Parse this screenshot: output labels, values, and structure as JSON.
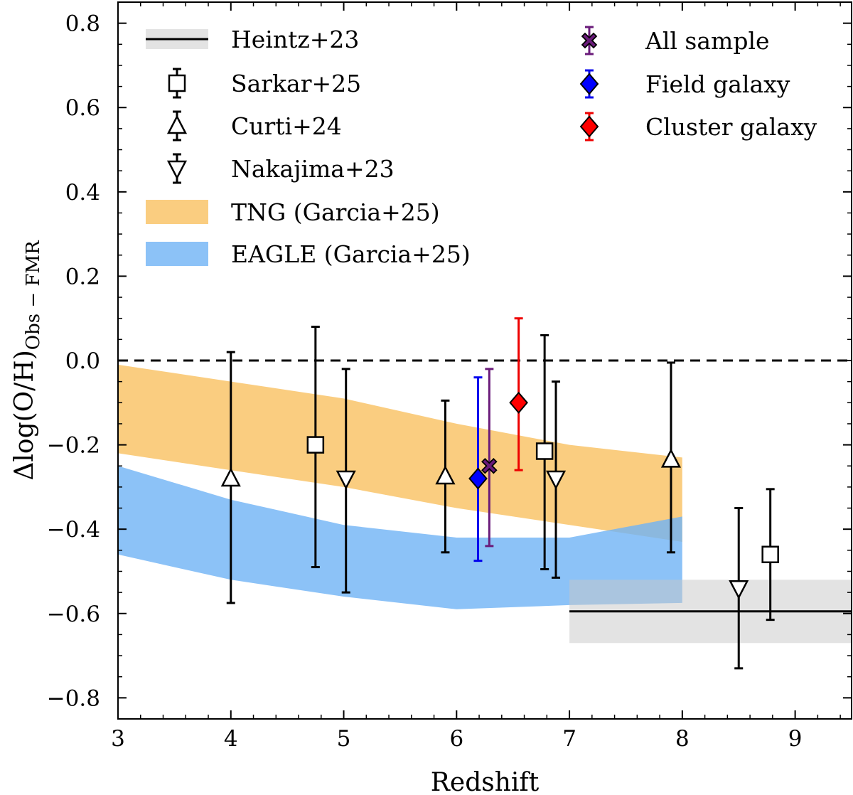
{
  "chart_data": {
    "type": "scatter",
    "xlabel": "Redshift",
    "ylabel_main": "Δlog(O/H)",
    "ylabel_sub": "Obs − FMR",
    "xlim": [
      3,
      9.5
    ],
    "ylim": [
      -0.85,
      0.85
    ],
    "xticks": [
      3,
      4,
      5,
      6,
      7,
      8,
      9
    ],
    "yticks": [
      -0.8,
      -0.6,
      -0.4,
      -0.2,
      0.0,
      0.2,
      0.4,
      0.6,
      0.8
    ],
    "ytick_labels": [
      "−0.8",
      "−0.6",
      "−0.4",
      "−0.2",
      "0.0",
      "0.2",
      "0.4",
      "0.6",
      "0.8"
    ],
    "reference_line": {
      "y": 0.0,
      "style": "dashed"
    },
    "bands": [
      {
        "name": "TNG (Garcia+25)",
        "color": "#f9c46a",
        "opacity": 0.85,
        "x": [
          3,
          4,
          5,
          6,
          7,
          8
        ],
        "upper": [
          -0.01,
          -0.05,
          -0.09,
          -0.15,
          -0.2,
          -0.23
        ],
        "lower": [
          -0.22,
          -0.26,
          -0.3,
          -0.35,
          -0.39,
          -0.43
        ]
      },
      {
        "name": "EAGLE (Garcia+25)",
        "color": "#6fb3f5",
        "opacity": 0.8,
        "x": [
          3,
          4,
          5,
          6,
          7,
          8
        ],
        "upper": [
          -0.25,
          -0.33,
          -0.39,
          -0.42,
          -0.42,
          -0.37
        ],
        "lower": [
          -0.46,
          -0.52,
          -0.56,
          -0.59,
          -0.58,
          -0.575
        ]
      }
    ],
    "heintz": {
      "name": "Heintz+23",
      "x": [
        7.0,
        9.5
      ],
      "y": -0.595,
      "lower": -0.67,
      "upper": -0.52
    },
    "series": [
      {
        "name": "Sarkar+25",
        "marker": "square",
        "color": "#000000",
        "fill": "#ffffff",
        "points": [
          {
            "x": 4.75,
            "y": -0.2,
            "lo": -0.49,
            "hi": 0.08
          },
          {
            "x": 6.78,
            "y": -0.215,
            "lo": -0.495,
            "hi": 0.06
          },
          {
            "x": 8.78,
            "y": -0.46,
            "lo": -0.615,
            "hi": -0.305
          }
        ]
      },
      {
        "name": "Curti+24",
        "marker": "triangle-up",
        "color": "#000000",
        "fill": "#ffffff",
        "points": [
          {
            "x": 4.0,
            "y": -0.28,
            "lo": -0.575,
            "hi": 0.02
          },
          {
            "x": 5.9,
            "y": -0.275,
            "lo": -0.455,
            "hi": -0.095
          },
          {
            "x": 7.9,
            "y": -0.235,
            "lo": -0.455,
            "hi": -0.005
          }
        ]
      },
      {
        "name": "Nakajima+23",
        "marker": "triangle-down",
        "color": "#000000",
        "fill": "#ffffff",
        "points": [
          {
            "x": 5.02,
            "y": -0.28,
            "lo": -0.55,
            "hi": -0.02
          },
          {
            "x": 6.88,
            "y": -0.28,
            "lo": -0.515,
            "hi": -0.05
          },
          {
            "x": 8.5,
            "y": -0.54,
            "lo": -0.73,
            "hi": -0.35
          }
        ]
      },
      {
        "name": "All sample",
        "marker": "x",
        "color": "#6a1b7a",
        "fill": "#6a1b7a",
        "points": [
          {
            "x": 6.29,
            "y": -0.25,
            "lo": -0.44,
            "hi": -0.02
          }
        ]
      },
      {
        "name": "Field galaxy",
        "marker": "diamond",
        "color": "#0000ee",
        "fill": "#0000ff",
        "points": [
          {
            "x": 6.19,
            "y": -0.28,
            "lo": -0.475,
            "hi": -0.04
          }
        ]
      },
      {
        "name": "Cluster galaxy",
        "marker": "diamond",
        "color": "#ee0000",
        "fill": "#ff0000",
        "points": [
          {
            "x": 6.55,
            "y": -0.1,
            "lo": -0.26,
            "hi": 0.1
          }
        ]
      }
    ],
    "legend": {
      "left": [
        "Heintz+23",
        "Sarkar+25",
        "Curti+24",
        "Nakajima+23",
        "TNG (Garcia+25)",
        "EAGLE (Garcia+25)"
      ],
      "right": [
        "All sample",
        "Field galaxy",
        "Cluster galaxy"
      ],
      "placement": "top"
    }
  }
}
